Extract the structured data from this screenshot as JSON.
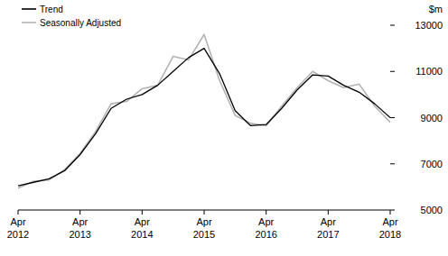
{
  "chart_data": {
    "type": "line",
    "y_label": "$m",
    "categories": [
      "Apr 2012",
      null,
      null,
      null,
      "Apr 2013",
      null,
      null,
      null,
      "Apr 2014",
      null,
      null,
      null,
      "Apr 2015",
      null,
      null,
      null,
      "Apr 2016",
      null,
      null,
      null,
      "Apr 2017",
      null,
      null,
      null,
      "Apr 2018"
    ],
    "series": [
      {
        "name": "Trend",
        "color": "#000000",
        "values": [
          6050,
          6200,
          6350,
          6700,
          7400,
          8300,
          9400,
          9800,
          10000,
          10400,
          11000,
          11600,
          12000,
          10900,
          9300,
          8650,
          8700,
          9400,
          10200,
          10850,
          10800,
          10400,
          10100,
          9600,
          9000
        ]
      },
      {
        "name": "Seasonally Adjusted",
        "color": "#b3b3b3",
        "values": [
          5950,
          6250,
          6300,
          6750,
          7450,
          8400,
          9600,
          9700,
          10250,
          10400,
          11650,
          11500,
          12600,
          10600,
          9100,
          8750,
          8650,
          9500,
          10300,
          11000,
          10600,
          10300,
          10450,
          9500,
          8800
        ]
      }
    ],
    "ylim": [
      5000,
      13000
    ],
    "yticks": [
      5000,
      7000,
      9000,
      11000,
      13000
    ],
    "legend": "top-left",
    "grid": false
  }
}
